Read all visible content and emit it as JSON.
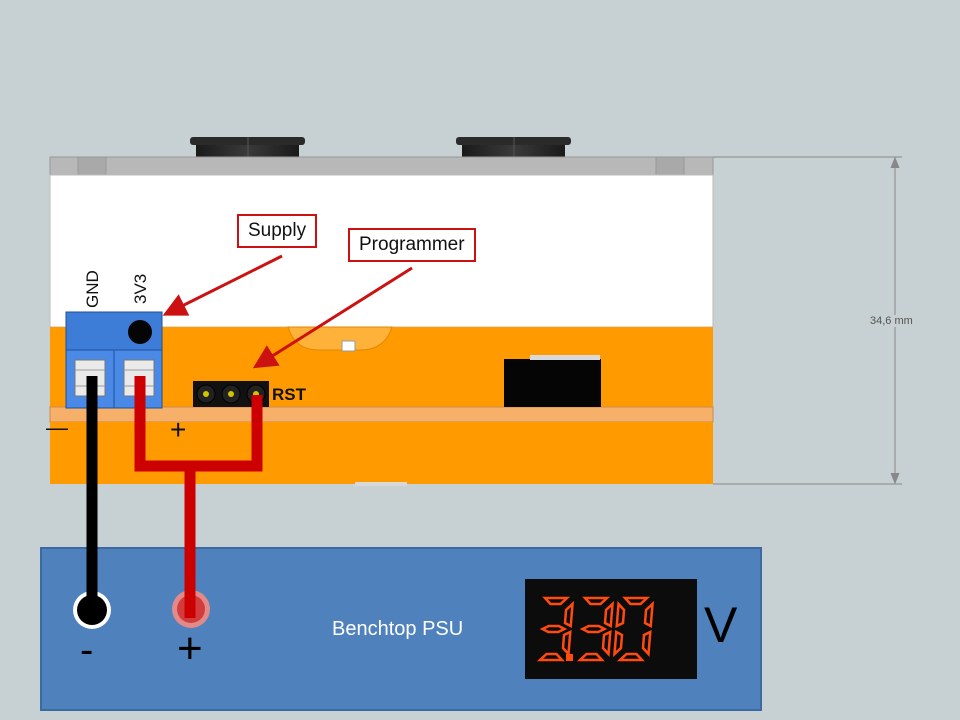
{
  "callouts": {
    "supply": "Supply",
    "programmer": "Programmer"
  },
  "board": {
    "gnd_label": "GND",
    "v33_label": "3V3",
    "rst_label": "RST",
    "minus_sign": "—",
    "plus_sign": "+",
    "dimension": "34,6 mm"
  },
  "psu": {
    "title": "Benchtop PSU",
    "display_value": "3.30",
    "unit": "V",
    "minus_label": "-",
    "plus_label": "+"
  },
  "colors": {
    "wire_positive": "#cc0000",
    "wire_negative": "#000000",
    "pcb": "#ff9a00",
    "terminal_block": "#3d7dd8",
    "psu_body": "#4f81bd",
    "display_digits": "#ff4a10",
    "callout_border": "#cc1111"
  }
}
